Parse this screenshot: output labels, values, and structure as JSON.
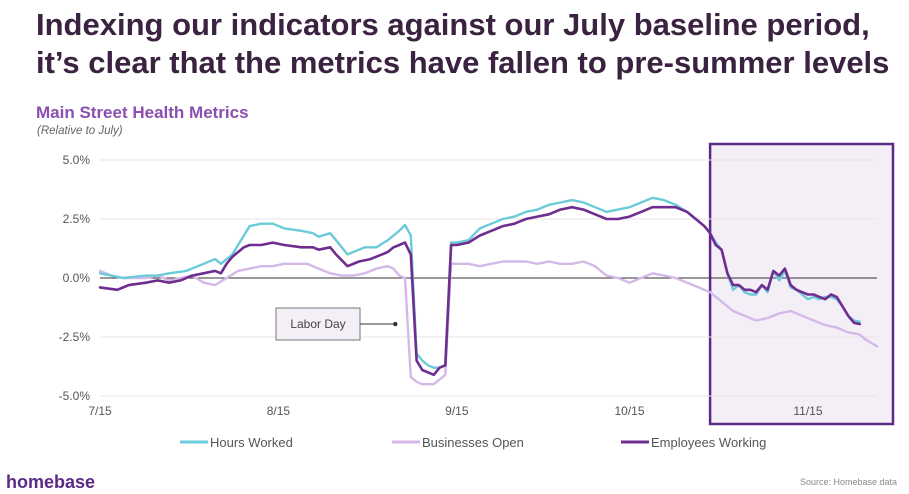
{
  "page": {
    "headline": "Indexing our indicators against our July baseline period, it’s clear that the metrics have fallen to pre-summer levels",
    "brand": "homebase",
    "source": "Source: Homebase data"
  },
  "chart_data": {
    "type": "line",
    "title": "Main Street Health Metrics",
    "subtitle": "(Relative to July)",
    "xlabel": "",
    "ylabel": "",
    "ylim": [
      -5.0,
      5.0
    ],
    "xlim": [
      0,
      135
    ],
    "y_ticks": [
      5.0,
      2.5,
      0.0,
      -2.5,
      -5.0
    ],
    "y_tick_labels": [
      "5.0%",
      "2.5%",
      "0.0%",
      "-2.5%",
      "-5.0%"
    ],
    "x_ticks": [
      0,
      31,
      62,
      92,
      123
    ],
    "x_tick_labels": [
      "7/15",
      "8/15",
      "9/15",
      "10/15",
      "11/15"
    ],
    "highlight_region": {
      "x_start": 106,
      "x_end": 136,
      "fill": "#f4eef7",
      "stroke": "#5b2a86"
    },
    "annotation": {
      "text": "Labor Day",
      "x": 52,
      "y": -1.95
    },
    "series": [
      {
        "name": "Hours Worked",
        "color": "#6ccbd8",
        "points": [
          [
            0,
            0.2
          ],
          [
            4,
            0.0
          ],
          [
            8,
            0.1
          ],
          [
            10,
            0.1
          ],
          [
            12,
            0.2
          ],
          [
            15,
            0.3
          ],
          [
            18,
            0.6
          ],
          [
            20,
            0.8
          ],
          [
            21,
            0.6
          ],
          [
            23,
            1.0
          ],
          [
            24,
            1.4
          ],
          [
            25,
            1.8
          ],
          [
            26,
            2.2
          ],
          [
            28,
            2.3
          ],
          [
            30,
            2.3
          ],
          [
            32,
            2.1
          ],
          [
            35,
            2.0
          ],
          [
            37,
            1.9
          ],
          [
            38,
            1.75
          ],
          [
            40,
            1.9
          ],
          [
            41,
            1.6
          ],
          [
            43,
            1.0
          ],
          [
            44,
            1.1
          ],
          [
            46,
            1.3
          ],
          [
            48,
            1.3
          ],
          [
            50,
            1.6
          ],
          [
            51,
            1.8
          ],
          [
            52,
            2.0
          ],
          [
            53,
            2.25
          ],
          [
            54,
            1.8
          ],
          [
            55,
            -3.2
          ],
          [
            56,
            -3.5
          ],
          [
            57,
            -3.7
          ],
          [
            58,
            -3.8
          ],
          [
            59,
            -3.8
          ],
          [
            60,
            -3.7
          ],
          [
            61,
            1.5
          ],
          [
            62,
            1.5
          ],
          [
            64,
            1.6
          ],
          [
            66,
            2.1
          ],
          [
            68,
            2.3
          ],
          [
            70,
            2.5
          ],
          [
            72,
            2.6
          ],
          [
            74,
            2.8
          ],
          [
            76,
            2.9
          ],
          [
            78,
            3.1
          ],
          [
            80,
            3.2
          ],
          [
            82,
            3.3
          ],
          [
            84,
            3.2
          ],
          [
            86,
            3.0
          ],
          [
            88,
            2.8
          ],
          [
            90,
            2.9
          ],
          [
            92,
            3.0
          ],
          [
            94,
            3.2
          ],
          [
            96,
            3.4
          ],
          [
            98,
            3.3
          ],
          [
            100,
            3.1
          ],
          [
            102,
            2.8
          ],
          [
            104,
            2.4
          ],
          [
            105,
            2.2
          ],
          [
            106,
            1.9
          ],
          [
            107,
            1.5
          ],
          [
            108,
            1.2
          ],
          [
            109,
            0.2
          ],
          [
            110,
            -0.5
          ],
          [
            111,
            -0.3
          ],
          [
            112,
            -0.6
          ],
          [
            113,
            -0.7
          ],
          [
            114,
            -0.7
          ],
          [
            115,
            -0.3
          ],
          [
            116,
            -0.6
          ],
          [
            117,
            0.3
          ],
          [
            118,
            -0.1
          ],
          [
            119,
            0.3
          ],
          [
            120,
            -0.4
          ],
          [
            121,
            -0.5
          ],
          [
            122,
            -0.7
          ],
          [
            123,
            -0.9
          ],
          [
            124,
            -0.8
          ],
          [
            125,
            -0.9
          ],
          [
            126,
            -0.8
          ],
          [
            127,
            -0.8
          ],
          [
            128,
            -0.9
          ],
          [
            129,
            -1.2
          ],
          [
            130,
            -1.6
          ],
          [
            131,
            -1.8
          ],
          [
            132,
            -1.85
          ]
        ]
      },
      {
        "name": "Businesses Open",
        "color": "#d4b8e8",
        "points": [
          [
            0,
            0.3
          ],
          [
            2,
            0.1
          ],
          [
            4,
            0.0
          ],
          [
            6,
            0.0
          ],
          [
            8,
            0.0
          ],
          [
            10,
            0.1
          ],
          [
            12,
            -0.1
          ],
          [
            14,
            0.0
          ],
          [
            16,
            0.1
          ],
          [
            18,
            -0.2
          ],
          [
            20,
            -0.3
          ],
          [
            22,
            0.0
          ],
          [
            24,
            0.3
          ],
          [
            26,
            0.4
          ],
          [
            28,
            0.5
          ],
          [
            30,
            0.5
          ],
          [
            32,
            0.6
          ],
          [
            34,
            0.6
          ],
          [
            36,
            0.6
          ],
          [
            38,
            0.4
          ],
          [
            40,
            0.2
          ],
          [
            42,
            0.1
          ],
          [
            44,
            0.1
          ],
          [
            46,
            0.2
          ],
          [
            48,
            0.4
          ],
          [
            50,
            0.5
          ],
          [
            51,
            0.4
          ],
          [
            52,
            0.1
          ],
          [
            53,
            0.0
          ],
          [
            54,
            -4.2
          ],
          [
            55,
            -4.4
          ],
          [
            56,
            -4.5
          ],
          [
            58,
            -4.5
          ],
          [
            59,
            -4.3
          ],
          [
            60,
            -4.1
          ],
          [
            61,
            0.6
          ],
          [
            64,
            0.6
          ],
          [
            66,
            0.5
          ],
          [
            68,
            0.6
          ],
          [
            70,
            0.7
          ],
          [
            72,
            0.7
          ],
          [
            74,
            0.7
          ],
          [
            76,
            0.6
          ],
          [
            78,
            0.7
          ],
          [
            80,
            0.6
          ],
          [
            82,
            0.6
          ],
          [
            84,
            0.7
          ],
          [
            86,
            0.5
          ],
          [
            88,
            0.1
          ],
          [
            90,
            0.0
          ],
          [
            92,
            -0.2
          ],
          [
            94,
            0.0
          ],
          [
            96,
            0.2
          ],
          [
            98,
            0.1
          ],
          [
            100,
            0.0
          ],
          [
            102,
            -0.2
          ],
          [
            104,
            -0.4
          ],
          [
            105,
            -0.5
          ],
          [
            106,
            -0.6
          ],
          [
            108,
            -1.0
          ],
          [
            110,
            -1.4
          ],
          [
            112,
            -1.6
          ],
          [
            114,
            -1.8
          ],
          [
            116,
            -1.7
          ],
          [
            118,
            -1.5
          ],
          [
            120,
            -1.4
          ],
          [
            122,
            -1.6
          ],
          [
            124,
            -1.8
          ],
          [
            126,
            -2.0
          ],
          [
            128,
            -2.1
          ],
          [
            130,
            -2.3
          ],
          [
            132,
            -2.4
          ],
          [
            133,
            -2.6
          ],
          [
            134,
            -2.75
          ],
          [
            135,
            -2.9
          ]
        ]
      },
      {
        "name": "Employees Working",
        "color": "#6e2d8f",
        "points": [
          [
            0,
            -0.4
          ],
          [
            3,
            -0.5
          ],
          [
            5,
            -0.3
          ],
          [
            8,
            -0.2
          ],
          [
            10,
            -0.1
          ],
          [
            12,
            -0.2
          ],
          [
            14,
            -0.1
          ],
          [
            16,
            0.1
          ],
          [
            18,
            0.2
          ],
          [
            20,
            0.3
          ],
          [
            21,
            0.2
          ],
          [
            22,
            0.6
          ],
          [
            23,
            0.9
          ],
          [
            25,
            1.3
          ],
          [
            26,
            1.4
          ],
          [
            28,
            1.4
          ],
          [
            30,
            1.5
          ],
          [
            32,
            1.4
          ],
          [
            35,
            1.3
          ],
          [
            37,
            1.3
          ],
          [
            38,
            1.2
          ],
          [
            40,
            1.3
          ],
          [
            41,
            1.0
          ],
          [
            43,
            0.5
          ],
          [
            45,
            0.7
          ],
          [
            47,
            0.8
          ],
          [
            49,
            1.0
          ],
          [
            50,
            1.1
          ],
          [
            51,
            1.3
          ],
          [
            52,
            1.4
          ],
          [
            53,
            1.5
          ],
          [
            54,
            1.0
          ],
          [
            55,
            -3.5
          ],
          [
            56,
            -3.9
          ],
          [
            57,
            -4.0
          ],
          [
            58,
            -4.1
          ],
          [
            59,
            -3.8
          ],
          [
            60,
            -3.7
          ],
          [
            61,
            1.4
          ],
          [
            62,
            1.4
          ],
          [
            64,
            1.5
          ],
          [
            66,
            1.8
          ],
          [
            68,
            2.0
          ],
          [
            70,
            2.2
          ],
          [
            72,
            2.3
          ],
          [
            74,
            2.5
          ],
          [
            76,
            2.6
          ],
          [
            78,
            2.7
          ],
          [
            80,
            2.9
          ],
          [
            82,
            3.0
          ],
          [
            84,
            2.9
          ],
          [
            86,
            2.7
          ],
          [
            88,
            2.5
          ],
          [
            90,
            2.5
          ],
          [
            92,
            2.6
          ],
          [
            94,
            2.8
          ],
          [
            96,
            3.0
          ],
          [
            98,
            3.0
          ],
          [
            100,
            3.0
          ],
          [
            102,
            2.8
          ],
          [
            104,
            2.4
          ],
          [
            105,
            2.2
          ],
          [
            106,
            1.9
          ],
          [
            107,
            1.4
          ],
          [
            108,
            1.2
          ],
          [
            109,
            0.2
          ],
          [
            110,
            -0.3
          ],
          [
            111,
            -0.3
          ],
          [
            112,
            -0.5
          ],
          [
            113,
            -0.5
          ],
          [
            114,
            -0.6
          ],
          [
            115,
            -0.3
          ],
          [
            116,
            -0.5
          ],
          [
            117,
            0.3
          ],
          [
            118,
            0.1
          ],
          [
            119,
            0.4
          ],
          [
            120,
            -0.3
          ],
          [
            121,
            -0.5
          ],
          [
            122,
            -0.6
          ],
          [
            123,
            -0.7
          ],
          [
            124,
            -0.7
          ],
          [
            125,
            -0.8
          ],
          [
            126,
            -0.9
          ],
          [
            127,
            -0.7
          ],
          [
            128,
            -0.8
          ],
          [
            129,
            -1.2
          ],
          [
            130,
            -1.6
          ],
          [
            131,
            -1.9
          ],
          [
            132,
            -1.95
          ]
        ]
      }
    ]
  }
}
